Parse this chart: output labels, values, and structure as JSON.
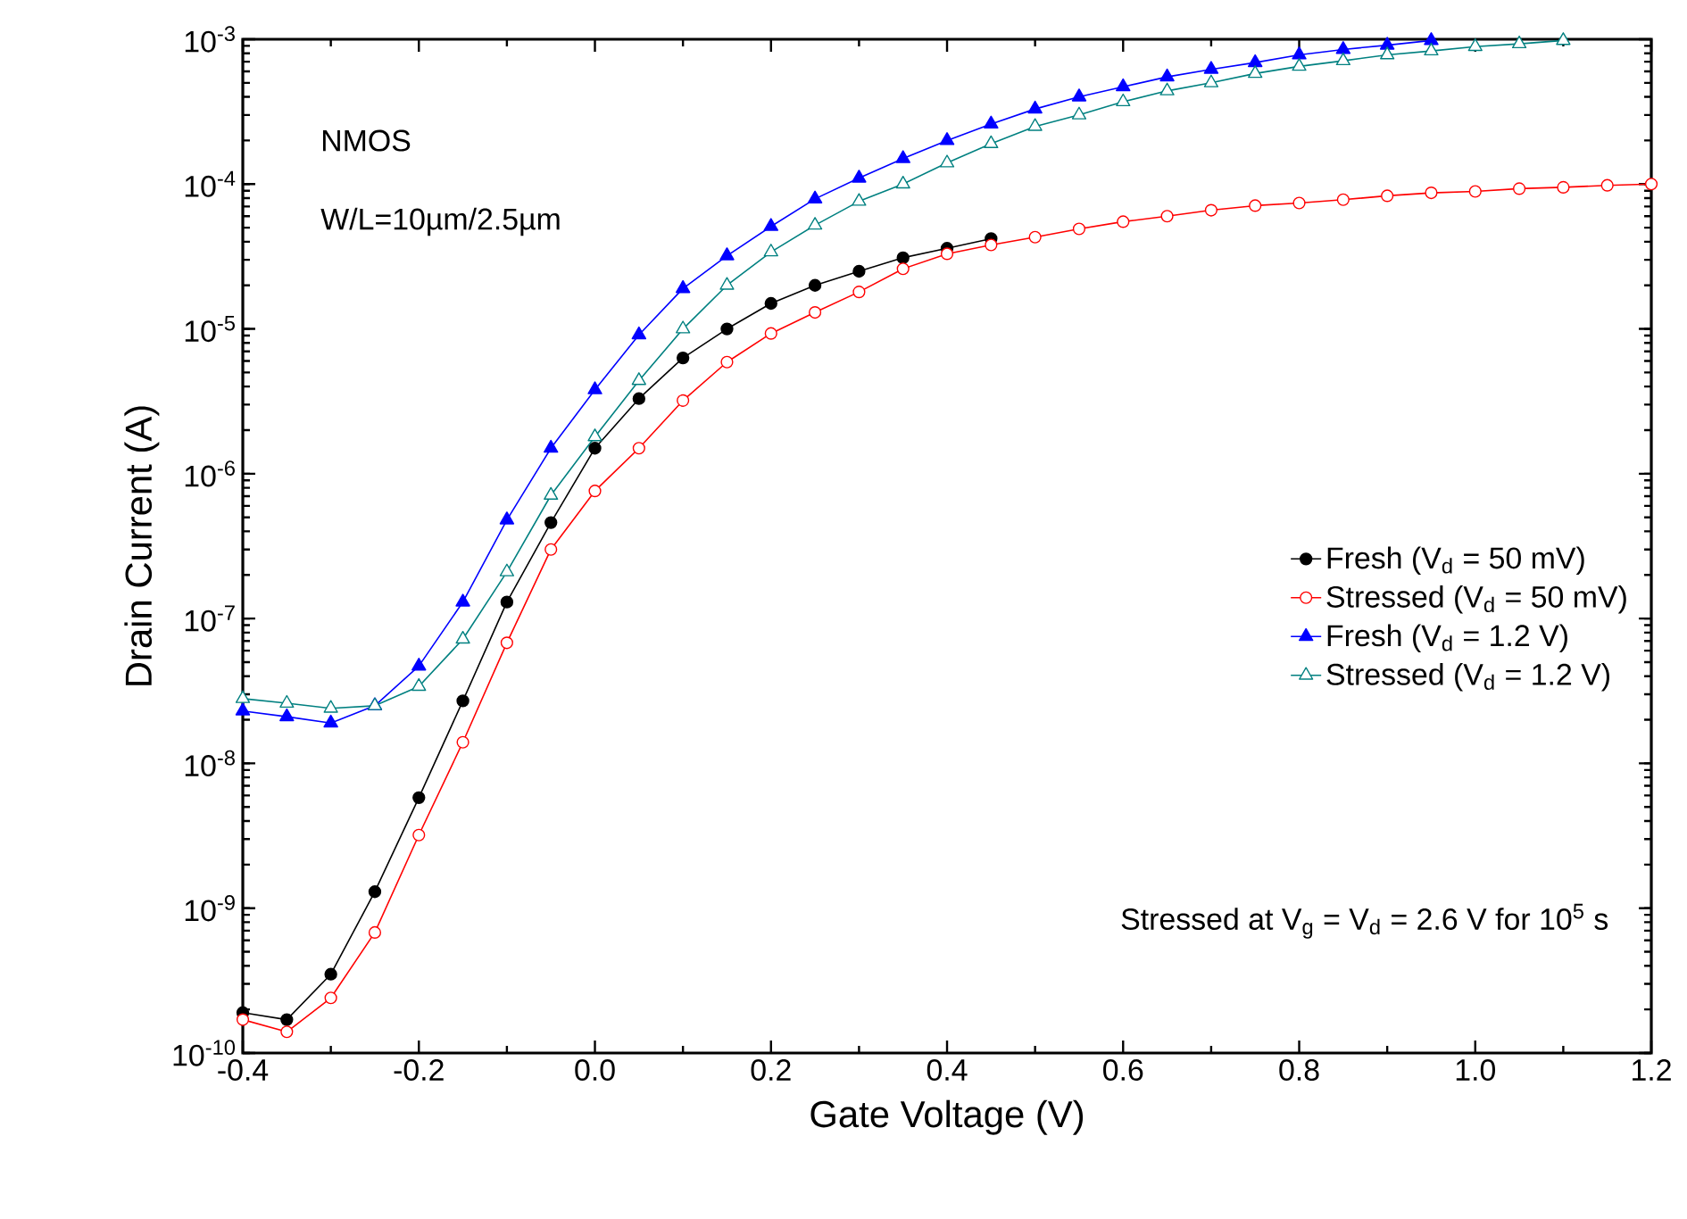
{
  "chart_data": {
    "type": "line",
    "xlabel": "Gate Voltage (V)",
    "ylabel": "Drain Current (A)",
    "log": "y",
    "xlim": [
      -0.4,
      1.2
    ],
    "ylim": [
      1e-10,
      0.001
    ],
    "xticks": [
      {
        "value": -0.4,
        "label": "-0.4"
      },
      {
        "value": -0.2,
        "label": "-0.2"
      },
      {
        "value": 0,
        "label": "0.0"
      },
      {
        "value": 0.2,
        "label": "0.2"
      },
      {
        "value": 0.4,
        "label": "0.4"
      },
      {
        "value": 0.6,
        "label": "0.6"
      },
      {
        "value": 0.8,
        "label": "0.8"
      },
      {
        "value": 1.0,
        "label": "1.0"
      },
      {
        "value": 1.2,
        "label": "1.2"
      }
    ],
    "yticks": [
      {
        "value": 1e-10,
        "label": "10$^{-10}$"
      },
      {
        "value": 1e-09,
        "label": "10$^{-9}$"
      },
      {
        "value": 1e-08,
        "label": "10$^{-8}$"
      },
      {
        "value": 1e-07,
        "label": "10$^{-7}$"
      },
      {
        "value": 1e-06,
        "label": "10$^{-6}$"
      },
      {
        "value": 1e-05,
        "label": "10$^{-5}$"
      },
      {
        "value": 0.0001,
        "label": "10$^{-4}$"
      },
      {
        "value": 0.001,
        "label": "10$^{-3}$"
      }
    ],
    "legend": "right",
    "grid": false,
    "line_style": "solid",
    "annotations": [
      "NMOS",
      "W/L=10µm/2.5µm",
      "Stressed at  V$_{g}$ = V$_{d}$ = 2.6 V for 10$^{5}$ s"
    ],
    "series": [
      {
        "name": "Fresh (V$_{d}$ = 50 mV)",
        "color": "#000000",
        "marker": "circle",
        "x": [
          -0.4,
          -0.35,
          -0.3,
          -0.25,
          -0.2,
          -0.15,
          -0.1,
          -0.05,
          0,
          0.05,
          0.1,
          0.15,
          0.2,
          0.25,
          0.3,
          0.35,
          0.4,
          0.45
        ],
        "values": [
          1.9e-10,
          1.7e-10,
          3.5e-10,
          1.3e-09,
          5.8e-09,
          2.7e-08,
          1.3e-07,
          4.6e-07,
          1.5e-06,
          3.3e-06,
          6.3e-06,
          1e-05,
          1.5e-05,
          2e-05,
          2.5e-05,
          3.1e-05,
          3.6e-05,
          4.2e-05
        ]
      },
      {
        "name": "Stressed (V$_{d}$ = 50 mV)",
        "color": "#ff0000",
        "marker": "circle",
        "x": [
          -0.4,
          -0.35,
          -0.3,
          -0.25,
          -0.2,
          -0.15,
          -0.1,
          -0.05,
          0,
          0.05,
          0.1,
          0.15,
          0.2,
          0.25,
          0.3,
          0.35,
          0.4,
          0.45,
          0.5,
          0.55,
          0.6,
          0.65,
          0.7,
          0.75,
          0.8,
          0.85,
          0.9,
          0.95,
          1.0,
          1.05,
          1.1,
          1.15,
          1.2
        ],
        "values": [
          1.7e-10,
          1.4e-10,
          2.4e-10,
          6.8e-10,
          3.2e-09,
          1.4e-08,
          6.8e-08,
          3e-07,
          7.6e-07,
          1.5e-06,
          3.2e-06,
          5.9e-06,
          9.3e-06,
          1.3e-05,
          1.8e-05,
          2.6e-05,
          3.3e-05,
          3.8e-05,
          4.3e-05,
          4.9e-05,
          5.5e-05,
          6e-05,
          6.6e-05,
          7.1e-05,
          7.4e-05,
          7.8e-05,
          8.3e-05,
          8.7e-05,
          8.9e-05,
          9.3e-05,
          9.5e-05,
          9.8e-05,
          0.0001
        ]
      },
      {
        "name": "Fresh (V$_{d}$ = 1.2 V)",
        "color": "#0000ff",
        "marker": "triangle",
        "x": [
          -0.4,
          -0.35,
          -0.3,
          -0.25,
          -0.2,
          -0.15,
          -0.1,
          -0.05,
          0,
          0.05,
          0.1,
          0.15,
          0.2,
          0.25,
          0.3,
          0.35,
          0.4,
          0.45,
          0.5,
          0.55,
          0.6,
          0.65,
          0.7,
          0.75,
          0.8,
          0.85,
          0.9,
          0.95
        ],
        "values": [
          2.3e-08,
          2.1e-08,
          1.9e-08,
          2.5e-08,
          4.7e-08,
          1.3e-07,
          4.8e-07,
          1.5e-06,
          3.8e-06,
          9.1e-06,
          1.9e-05,
          3.2e-05,
          5.1e-05,
          7.9e-05,
          0.00011,
          0.00015,
          0.0002,
          0.00026,
          0.00033,
          0.0004,
          0.00047,
          0.00055,
          0.00062,
          0.00069,
          0.00078,
          0.00085,
          0.00091,
          0.00098
        ]
      },
      {
        "name": "Stressed (V$_{d}$ = 1.2 V)",
        "color": "#008080",
        "marker": "triangle",
        "x": [
          -0.4,
          -0.35,
          -0.3,
          -0.25,
          -0.2,
          -0.15,
          -0.1,
          -0.05,
          0,
          0.05,
          0.1,
          0.15,
          0.2,
          0.25,
          0.3,
          0.35,
          0.4,
          0.45,
          0.5,
          0.55,
          0.6,
          0.65,
          0.7,
          0.75,
          0.8,
          0.85,
          0.9,
          0.95,
          1.0,
          1.05,
          1.1
        ],
        "values": [
          2.8e-08,
          2.6e-08,
          2.4e-08,
          2.5e-08,
          3.4e-08,
          7.2e-08,
          2.1e-07,
          7.1e-07,
          1.8e-06,
          4.4e-06,
          1e-05,
          2e-05,
          3.4e-05,
          5.2e-05,
          7.6e-05,
          0.0001,
          0.00014,
          0.00019,
          0.00025,
          0.0003,
          0.00037,
          0.00044,
          0.0005,
          0.00058,
          0.00065,
          0.00071,
          0.00078,
          0.00083,
          0.00089,
          0.00093,
          0.00098
        ]
      }
    ]
  }
}
